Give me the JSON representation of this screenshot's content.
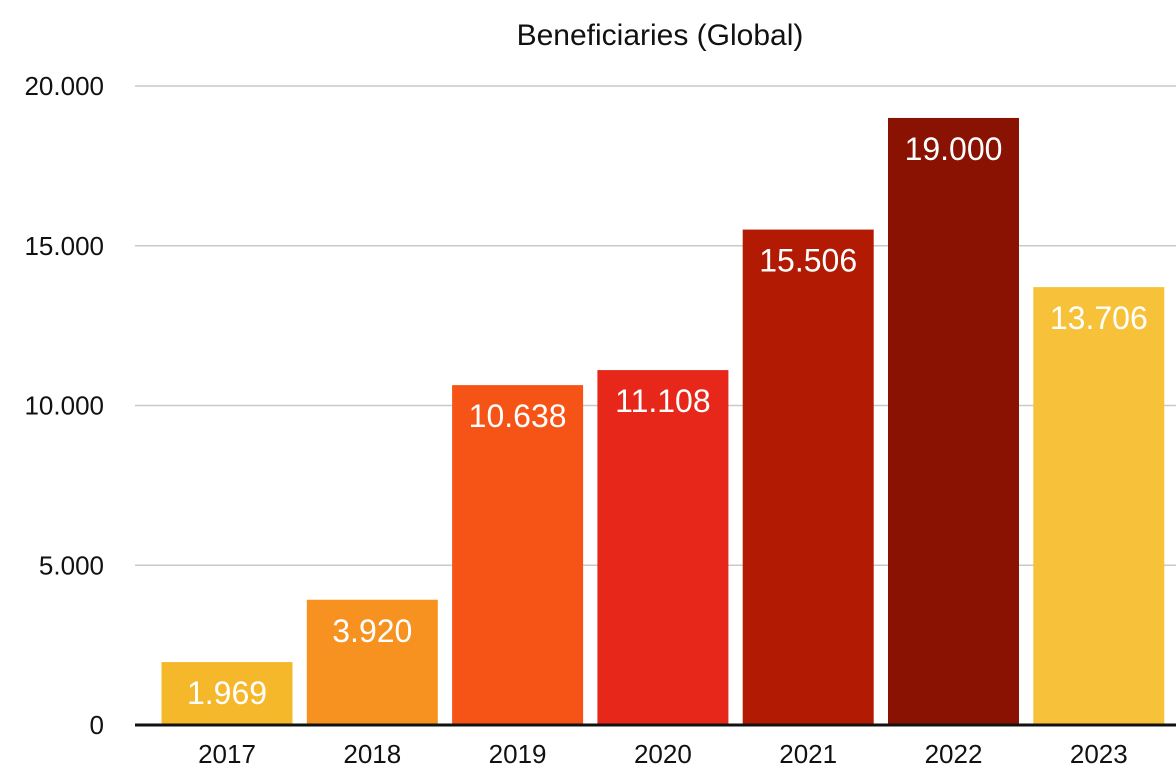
{
  "chart_data": {
    "type": "bar",
    "title": "Beneficiaries (Global)",
    "xlabel": "",
    "ylabel": "",
    "categories": [
      "2017",
      "2018",
      "2019",
      "2020",
      "2021",
      "2022",
      "2023"
    ],
    "values": [
      1969,
      3920,
      10638,
      11108,
      15506,
      19000,
      13706
    ],
    "data_labels": [
      "1.969",
      "3.920",
      "10.638",
      "11.108",
      "15.506",
      "19.000",
      "13.706"
    ],
    "colors": [
      "#f6b82b",
      "#f79120",
      "#f65316",
      "#e7271a",
      "#b21a04",
      "#8a1202",
      "#f7c23a"
    ],
    "ylim": [
      0,
      20000
    ],
    "yticks": [
      0,
      5000,
      10000,
      15000,
      20000
    ],
    "ytick_labels": [
      "0",
      "5.000",
      "10.000",
      "15.000",
      "20.000"
    ],
    "grid": true,
    "legend": "none"
  }
}
